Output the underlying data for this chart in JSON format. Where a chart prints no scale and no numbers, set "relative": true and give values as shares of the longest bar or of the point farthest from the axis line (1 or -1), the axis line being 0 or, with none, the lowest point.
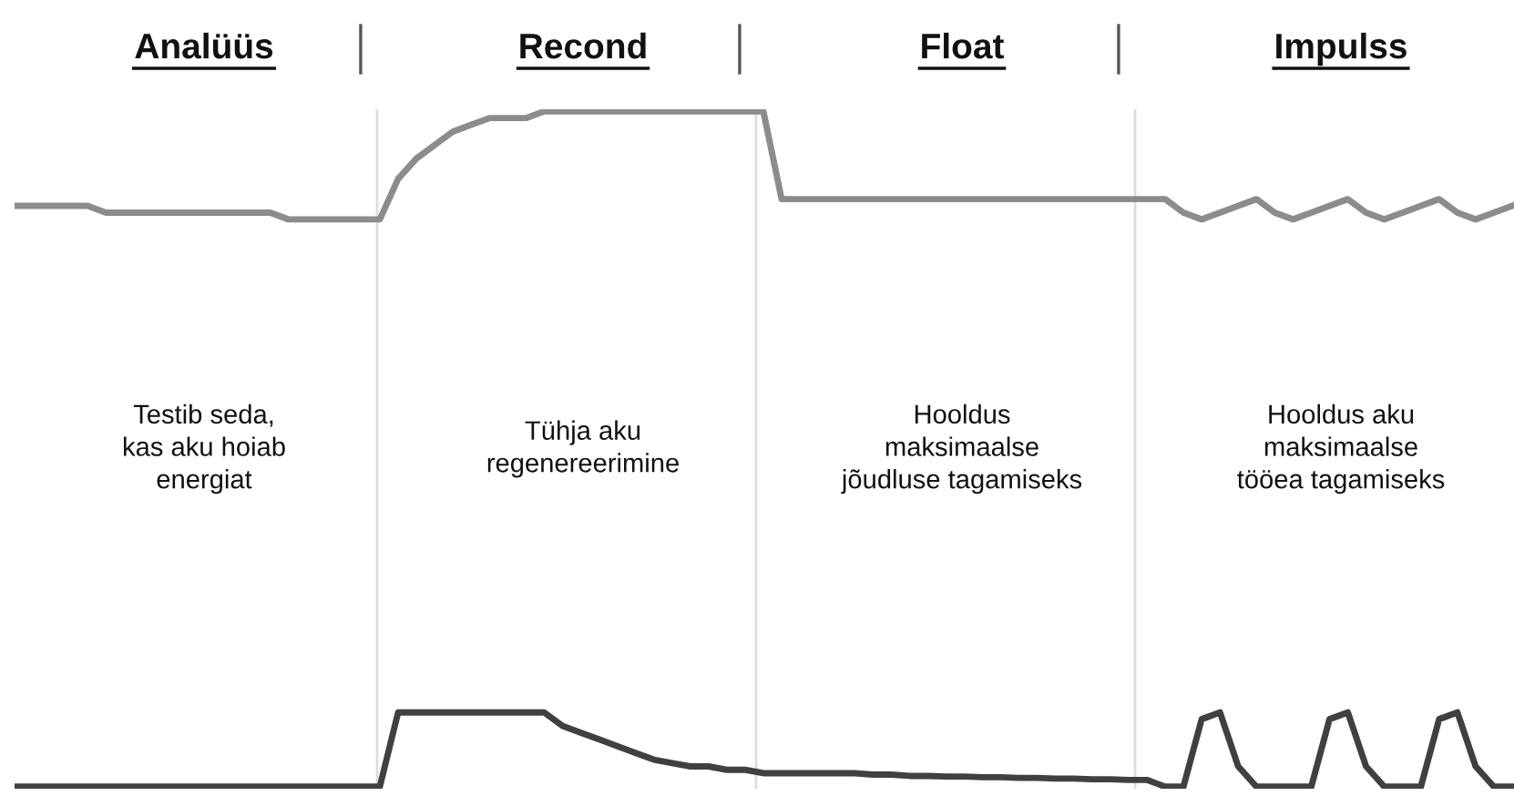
{
  "chart_data": {
    "type": "line",
    "relative": true,
    "annotations": [
      "Analüüs",
      "Testib seda,\nkas aku hoiab\nenergiat",
      "Recond",
      "Tühja aku\nregenereerimine",
      "Float",
      "Hooldus\nmaksimaalse\njõudluse tagamiseks",
      "Impulss",
      "Hooldus aku\nmaksimaalse\ntööea tagamiseks"
    ],
    "categories": [
      null,
      null,
      null,
      null,
      null,
      null,
      null,
      null,
      null,
      null,
      null,
      null,
      null,
      null,
      null,
      null,
      null,
      null,
      null,
      null,
      null,
      null,
      null,
      null,
      null,
      null,
      null,
      null,
      null,
      null,
      null,
      null,
      null,
      null,
      null,
      null,
      null,
      null,
      null,
      null,
      null,
      null,
      null,
      null,
      null,
      null,
      null,
      null,
      null,
      null,
      null,
      null,
      null,
      null,
      null,
      null,
      null,
      null,
      null,
      null,
      null,
      null,
      null,
      null,
      null,
      null,
      null,
      null,
      null,
      null,
      null,
      null,
      null,
      null,
      null,
      null,
      null,
      null,
      null,
      null,
      null,
      null,
      null
    ],
    "series": [
      {
        "color": "#8c8c8c",
        "values": [
          0.86,
          0.86,
          0.86,
          0.86,
          0.86,
          0.85,
          0.85,
          0.85,
          0.85,
          0.85,
          0.85,
          0.85,
          0.85,
          0.85,
          0.85,
          0.84,
          0.84,
          0.84,
          0.84,
          0.84,
          0.84,
          0.9,
          0.93,
          0.95,
          0.97,
          0.98,
          0.99,
          0.99,
          0.99,
          1,
          1,
          1,
          1,
          1,
          1,
          1,
          1,
          1,
          1,
          1,
          1,
          1,
          0.87,
          0.87,
          0.87,
          0.87,
          0.87,
          0.87,
          0.87,
          0.87,
          0.87,
          0.87,
          0.87,
          0.87,
          0.87,
          0.87,
          0.87,
          0.87,
          0.87,
          0.87,
          0.87,
          0.87,
          0.87,
          0.87,
          0.85,
          0.84,
          0.85,
          0.86,
          0.87,
          0.85,
          0.84,
          0.85,
          0.86,
          0.87,
          0.85,
          0.84,
          0.85,
          0.86,
          0.87,
          0.85,
          0.84,
          0.85,
          0.86
        ]
      },
      {
        "color": "#404040",
        "values": [
          0,
          0,
          0,
          0,
          0,
          0,
          0,
          0,
          0,
          0,
          0,
          0,
          0,
          0,
          0,
          0,
          0,
          0,
          0,
          0,
          0,
          0.11,
          0.11,
          0.11,
          0.11,
          0.11,
          0.11,
          0.11,
          0.11,
          0.11,
          0.09,
          0.08,
          0.07,
          0.06,
          0.05,
          0.04,
          0.035,
          0.03,
          0.03,
          0.025,
          0.025,
          0.02,
          0.02,
          0.02,
          0.02,
          0.02,
          0.02,
          0.018,
          0.018,
          0.016,
          0.016,
          0.015,
          0.015,
          0.014,
          0.014,
          0.013,
          0.013,
          0.012,
          0.012,
          0.011,
          0.011,
          0.01,
          0.01,
          0,
          0,
          0.1,
          0.11,
          0.03,
          0,
          0,
          0,
          0,
          0.1,
          0.11,
          0.03,
          0,
          0,
          0,
          0.1,
          0.11,
          0.03,
          0,
          0
        ]
      }
    ]
  }
}
